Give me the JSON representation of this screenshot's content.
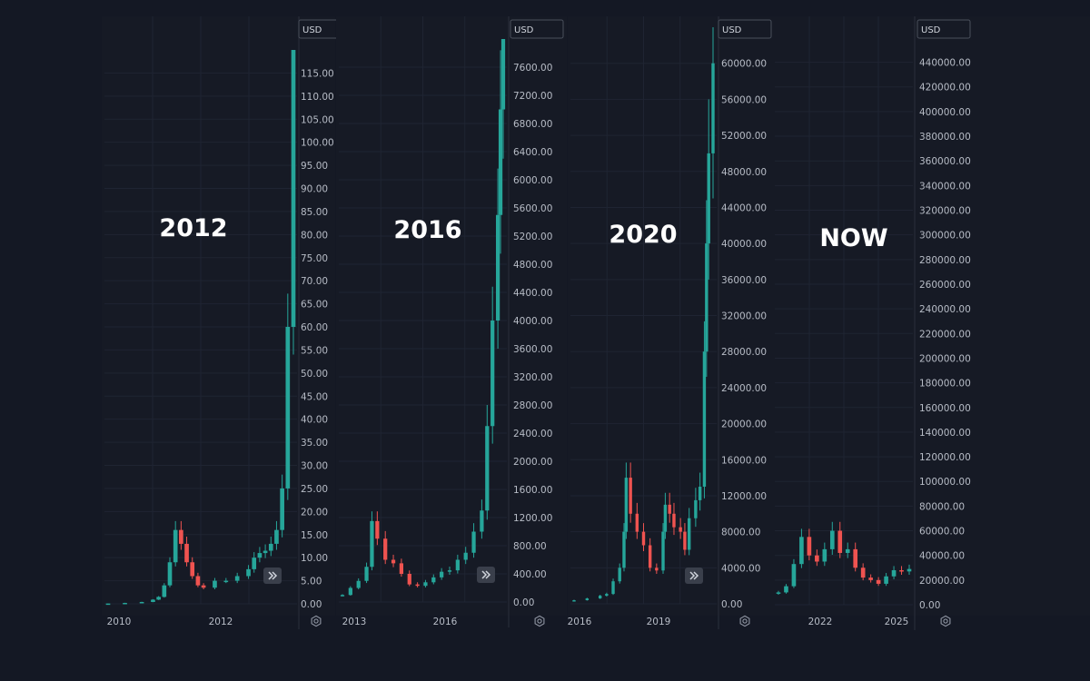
{
  "colors": {
    "background": "#141824",
    "panel": "#161a25",
    "grid": "#1f2432",
    "divider": "#2a2f3c",
    "up": "#26a69a",
    "down": "#ef5350",
    "text": "#b7bcc6",
    "title": "#ffffff"
  },
  "icons": {
    "scroll_forward": "double-chevron-right-icon",
    "settings": "gear-icon"
  },
  "chart_data": [
    {
      "type": "candlestick",
      "title": "2012",
      "currency": "USD",
      "ylim": [
        0,
        120
      ],
      "yticks": [
        0,
        5,
        10,
        15,
        20,
        25,
        30,
        35,
        40,
        45,
        50,
        55,
        60,
        65,
        70,
        75,
        80,
        85,
        90,
        95,
        100,
        105,
        110,
        115
      ],
      "yticks_text": [
        "0.00",
        "5.00",
        "10.00",
        "15.00",
        "20.00",
        "25.00",
        "30.00",
        "35.00",
        "40.00",
        "45.00",
        "50.00",
        "55.00",
        "60.00",
        "65.00",
        "70.00",
        "75.00",
        "80.00",
        "85.00",
        "90.00",
        "95.00",
        "100.00",
        "105.00",
        "110.00",
        "115.00"
      ],
      "xticks": [
        "2010",
        "2012"
      ],
      "x": [
        "2010-07",
        "2010-10",
        "2011-01",
        "2011-03",
        "2011-04",
        "2011-05",
        "2011-06",
        "2011-07",
        "2011-08",
        "2011-09",
        "2011-10",
        "2011-11",
        "2011-12",
        "2012-02",
        "2012-04",
        "2012-06",
        "2012-08",
        "2012-09",
        "2012-10",
        "2012-11",
        "2012-12",
        "2013-01",
        "2013-02",
        "2013-03",
        "2013-04"
      ],
      "values": [
        0.07,
        0.2,
        0.4,
        0.9,
        1.5,
        4.0,
        9.0,
        16.0,
        13.0,
        9.0,
        6.0,
        4.0,
        3.5,
        5.0,
        5.0,
        6.0,
        7.5,
        10.0,
        11.0,
        11.5,
        13.0,
        16.0,
        25.0,
        60.0,
        120.0
      ]
    },
    {
      "type": "candlestick",
      "title": "2016",
      "currency": "USD",
      "ylim": [
        0,
        8000
      ],
      "yticks": [
        0,
        400,
        800,
        1200,
        1600,
        2000,
        2400,
        2800,
        3200,
        3600,
        4000,
        4400,
        4800,
        5200,
        5600,
        6000,
        6400,
        6800,
        7200,
        7600
      ],
      "yticks_text": [
        "0.00",
        "400.00",
        "800.00",
        "1200.00",
        "1600.00",
        "2000.00",
        "2400.00",
        "2800.00",
        "3200.00",
        "3600.00",
        "4000.00",
        "4400.00",
        "4800.00",
        "5200.00",
        "5600.00",
        "6000.00",
        "6400.00",
        "6800.00",
        "7200.00",
        "7600.00"
      ],
      "xticks": [
        "2013",
        "2016"
      ],
      "x": [
        "2012-12",
        "2013-03",
        "2013-06",
        "2013-09",
        "2013-11",
        "2014-01",
        "2014-04",
        "2014-07",
        "2014-10",
        "2015-01",
        "2015-04",
        "2015-07",
        "2015-10",
        "2016-01",
        "2016-04",
        "2016-07",
        "2016-10",
        "2017-01",
        "2017-04",
        "2017-06",
        "2017-08",
        "2017-10",
        "2017-11",
        "2017-12"
      ],
      "values": [
        100,
        200,
        300,
        500,
        1150,
        900,
        600,
        550,
        400,
        250,
        230,
        280,
        350,
        430,
        450,
        600,
        700,
        1000,
        1300,
        2500,
        4000,
        5500,
        7000,
        8000
      ]
    },
    {
      "type": "candlestick",
      "title": "2020",
      "currency": "USD",
      "ylim": [
        0,
        64000
      ],
      "yticks": [
        0,
        4000,
        8000,
        12000,
        16000,
        20000,
        24000,
        28000,
        32000,
        36000,
        40000,
        44000,
        48000,
        52000,
        56000,
        60000
      ],
      "yticks_text": [
        "0.00",
        "4000.00",
        "8000.00",
        "12000.00",
        "16000.00",
        "20000.00",
        "24000.00",
        "28000.00",
        "32000.00",
        "36000.00",
        "40000.00",
        "44000.00",
        "48000.00",
        "52000.00",
        "56000.00",
        "60000.00"
      ],
      "xticks": [
        "2016",
        "2019"
      ],
      "x": [
        "2015-12",
        "2016-06",
        "2016-12",
        "2017-03",
        "2017-06",
        "2017-09",
        "2017-11",
        "2017-12",
        "2018-02",
        "2018-05",
        "2018-08",
        "2018-11",
        "2019-02",
        "2019-05",
        "2019-06",
        "2019-08",
        "2019-10",
        "2020-01",
        "2020-03",
        "2020-05",
        "2020-08",
        "2020-10",
        "2020-12",
        "2021-01",
        "2021-02",
        "2021-04"
      ],
      "values": [
        400,
        600,
        900,
        1100,
        2500,
        4000,
        8000,
        14000,
        10000,
        8000,
        6500,
        4000,
        3700,
        8000,
        11000,
        10000,
        8500,
        8000,
        6000,
        9500,
        11500,
        13000,
        28000,
        40000,
        50000,
        60000
      ]
    },
    {
      "type": "candlestick",
      "title": "NOW",
      "currency": "USD",
      "ylim": [
        0,
        450000
      ],
      "yticks": [
        0,
        20000,
        40000,
        60000,
        80000,
        100000,
        120000,
        140000,
        160000,
        180000,
        200000,
        220000,
        240000,
        260000,
        280000,
        300000,
        320000,
        340000,
        360000,
        380000,
        400000,
        420000,
        440000
      ],
      "yticks_text": [
        "0.00",
        "20000.00",
        "40000.00",
        "60000.00",
        "80000.00",
        "100000.00",
        "120000.00",
        "140000.00",
        "160000.00",
        "180000.00",
        "200000.00",
        "220000.00",
        "240000.00",
        "260000.00",
        "280000.00",
        "300000.00",
        "320000.00",
        "340000.00",
        "360000.00",
        "380000.00",
        "400000.00",
        "420000.00",
        "440000.00"
      ],
      "xticks": [
        "2022",
        "2025"
      ],
      "x": [
        "2020-09",
        "2020-11",
        "2021-01",
        "2021-03",
        "2021-05",
        "2021-07",
        "2021-09",
        "2021-11",
        "2022-01",
        "2022-03",
        "2022-05",
        "2022-07",
        "2022-09",
        "2022-11",
        "2023-01",
        "2023-03",
        "2023-05",
        "2023-07"
      ],
      "values": [
        10000,
        15000,
        33000,
        55000,
        40000,
        35000,
        45000,
        60000,
        42000,
        45000,
        30000,
        22000,
        20000,
        17000,
        23000,
        28000,
        27000,
        29000
      ]
    }
  ]
}
